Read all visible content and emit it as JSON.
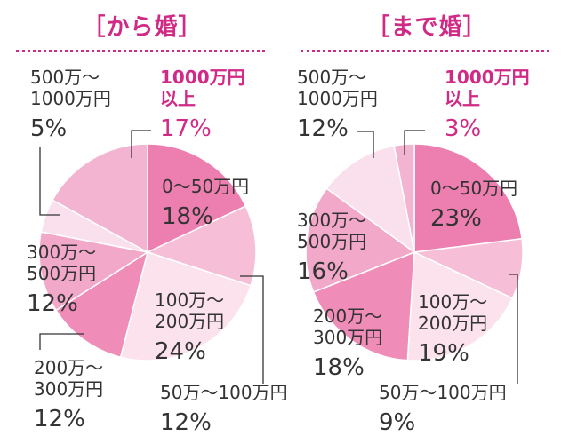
{
  "chart_data": [
    {
      "type": "pie",
      "title": "［から婚］",
      "slices": [
        {
          "label": "0～50万円",
          "value": 18,
          "percent_text": "18%",
          "color": "#ed7fb0"
        },
        {
          "label": "50万～100万円",
          "value": 12,
          "percent_text": "12%",
          "color": "#f6bfd7"
        },
        {
          "label": "100万～\n200万円",
          "value": 24,
          "percent_text": "24%",
          "color": "#fbe2ed"
        },
        {
          "label": "200万～\n300万円",
          "value": 12,
          "percent_text": "12%",
          "color": "#ef8db8"
        },
        {
          "label": "300万～\n500万円",
          "value": 12,
          "percent_text": "12%",
          "color": "#f2a8c9"
        },
        {
          "label": "500万～\n1000万円",
          "value": 5,
          "percent_text": "5%",
          "color": "#fae0ec"
        },
        {
          "label": "1000万円\n以上",
          "value": 17,
          "percent_text": "17%",
          "color": "#f2b4d0"
        }
      ]
    },
    {
      "type": "pie",
      "title": "［まで婚］",
      "slices": [
        {
          "label": "0～50万円",
          "value": 23,
          "percent_text": "23%",
          "color": "#ed7fb0"
        },
        {
          "label": "50万～100万円",
          "value": 9,
          "percent_text": "9%",
          "color": "#f6bfd7"
        },
        {
          "label": "100万～\n200万円",
          "value": 19,
          "percent_text": "19%",
          "color": "#fbe2ed"
        },
        {
          "label": "200万～\n300万円",
          "value": 18,
          "percent_text": "18%",
          "color": "#ef8db8"
        },
        {
          "label": "300万～\n500万円",
          "value": 16,
          "percent_text": "16%",
          "color": "#f2a8c9"
        },
        {
          "label": "500万～\n1000万円",
          "value": 12,
          "percent_text": "12%",
          "color": "#fae0ec"
        },
        {
          "label": "1000万円\n以上",
          "value": 3,
          "percent_text": "3%",
          "color": "#f2b4d0"
        }
      ]
    }
  ]
}
